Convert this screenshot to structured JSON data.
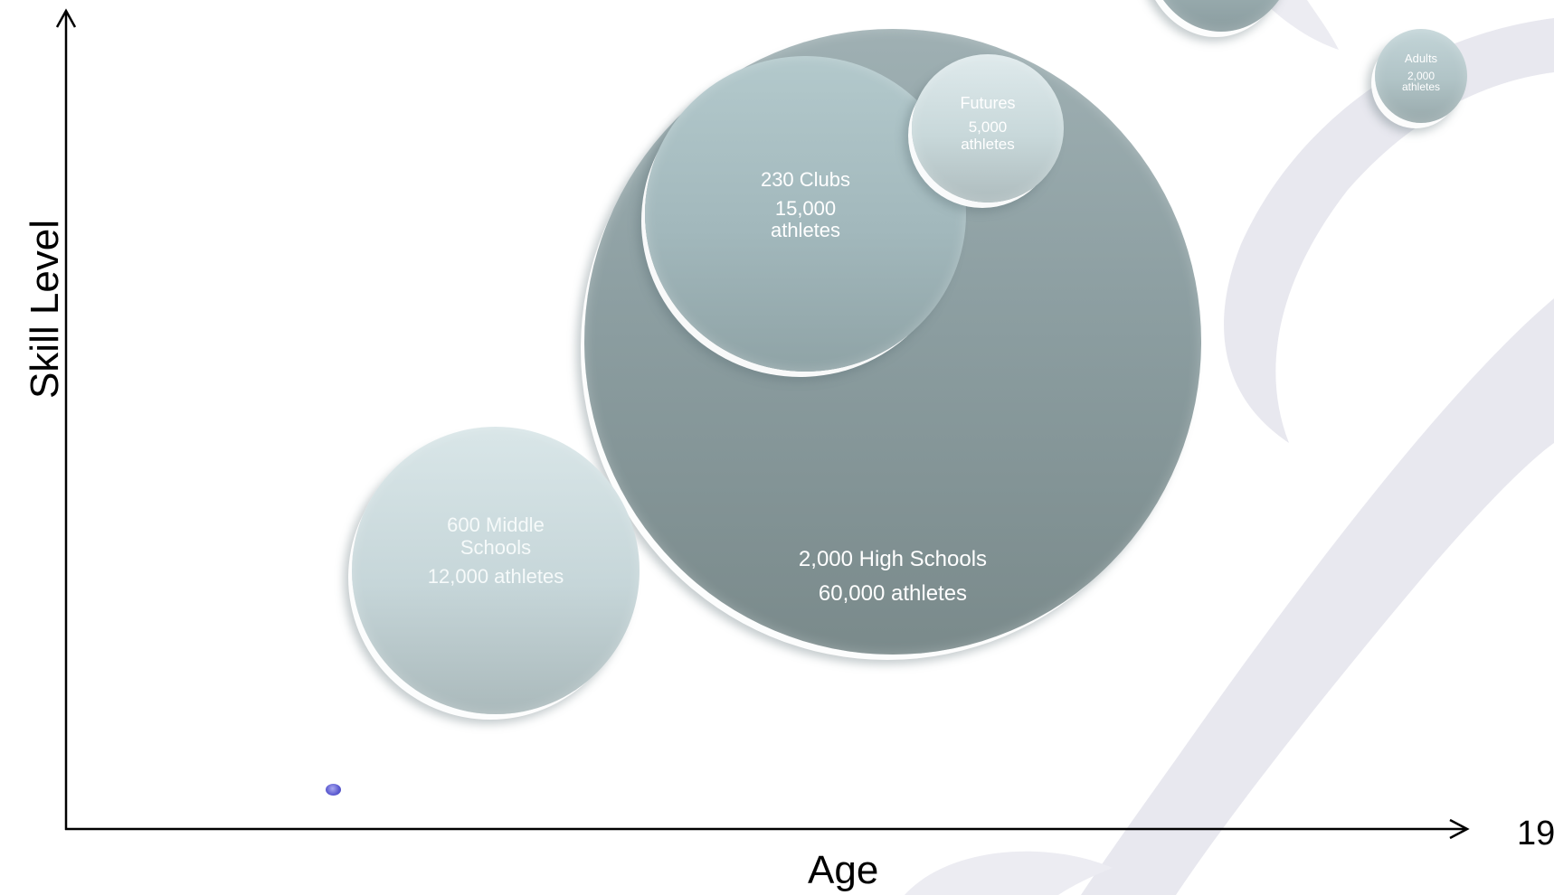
{
  "diagram": {
    "x_axis_label": "Age",
    "y_axis_label": "Skill Level",
    "slide_number": "19",
    "bubbles": [
      {
        "id": "high-schools",
        "line1": "2,000 High Schools",
        "line2": "60,000 athletes"
      },
      {
        "id": "clubs",
        "line1": "230 Clubs",
        "line2": "15,000 athletes"
      },
      {
        "id": "futures",
        "line1": "Futures",
        "line2": "5,000 athletes"
      },
      {
        "id": "middle-schools",
        "line1": "600 Middle Schools",
        "line2": "12,000 athletes"
      },
      {
        "id": "adults",
        "line1": "Adults",
        "line2": "2,000 athletes"
      },
      {
        "id": "top-partial",
        "line1": "",
        "line2": ""
      }
    ]
  },
  "colors": {
    "bubble_dark": "#7a8a8b",
    "bubble_light": "#dfeaec",
    "axis": "#000000",
    "watermark": "#e8e8ef",
    "marker": "#5b5ad0"
  }
}
